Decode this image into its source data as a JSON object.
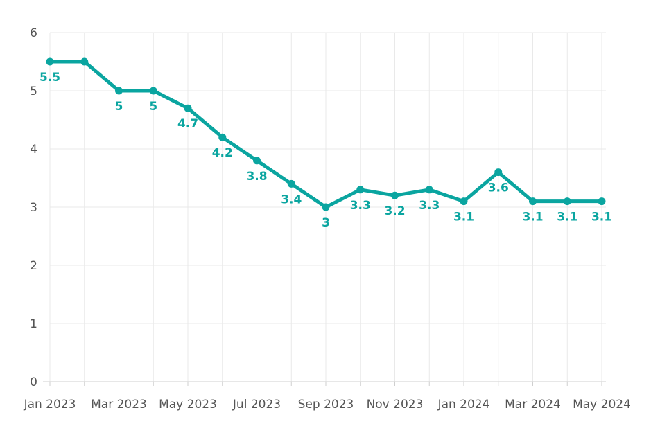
{
  "chart_data": {
    "type": "line",
    "title": "",
    "xlabel": "",
    "ylabel": "",
    "x": [
      "Jan 2023",
      "Feb 2023",
      "Mar 2023",
      "Apr 2023",
      "May 2023",
      "Jun 2023",
      "Jul 2023",
      "Aug 2023",
      "Sep 2023",
      "Oct 2023",
      "Nov 2023",
      "Dec 2023",
      "Jan 2024",
      "Feb 2024",
      "Mar 2024",
      "Apr 2024",
      "May 2024"
    ],
    "x_tick_labels": [
      "Jan 2023",
      "Mar 2023",
      "May 2023",
      "Jul 2023",
      "Sep 2023",
      "Nov 2023",
      "Jan 2024",
      "Mar 2024",
      "May 2024"
    ],
    "y_ticks": [
      0,
      1,
      2,
      3,
      4,
      5,
      6
    ],
    "ylim": [
      0,
      6
    ],
    "grid": true,
    "series": [
      {
        "values": [
          5.5,
          5.5,
          5,
          5,
          4.7,
          4.2,
          3.8,
          3.4,
          3,
          3.3,
          3.2,
          3.3,
          3.1,
          3.6,
          3.1,
          3.1,
          3.1
        ],
        "data_labels": [
          "5.5",
          "",
          "5",
          "5",
          "4.7",
          "4.2",
          "3.8",
          "3.4",
          "3",
          "3.3",
          "3.2",
          "3.3",
          "3.1",
          "3.6",
          "3.1",
          "3.1",
          "3.1"
        ],
        "color": "#0aa5a0"
      }
    ]
  }
}
